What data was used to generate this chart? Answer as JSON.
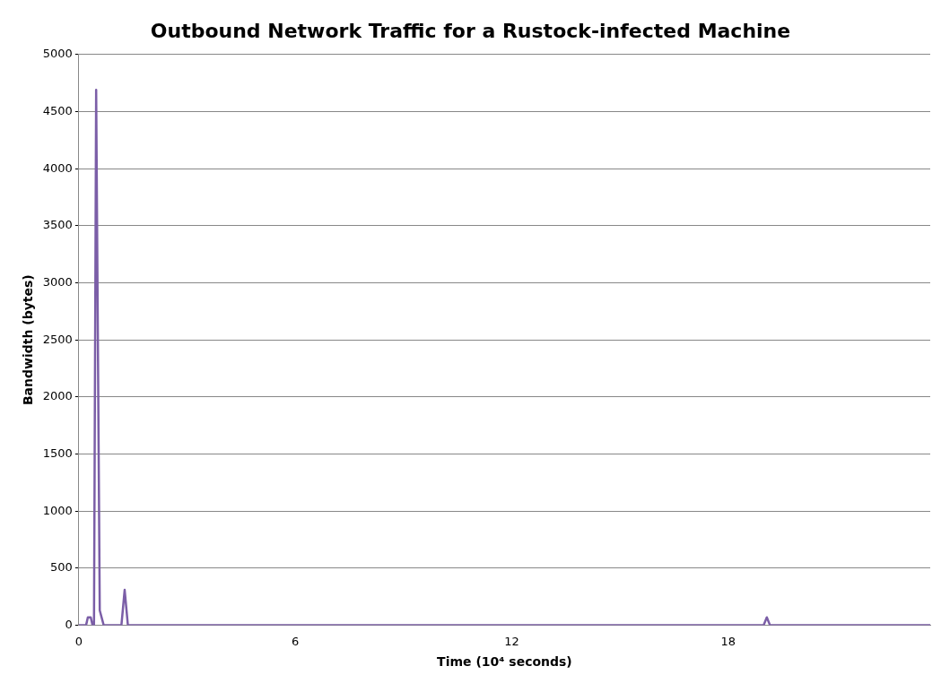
{
  "chart_data": {
    "type": "line",
    "title": "Outbound Network Traffic for a Rustock-infected Machine",
    "xlabel": "Time (10⁴ seconds)",
    "ylabel": "Bandwidth (bytes)",
    "x": [
      0,
      0.2,
      0.25,
      0.33,
      0.38,
      0.42,
      0.48,
      0.58,
      0.69,
      1.18,
      1.27,
      1.36,
      18.98,
      19.07,
      19.16,
      23.6
    ],
    "series": [
      {
        "color": "#7b5ea7",
        "values": [
          0,
          0,
          70,
          70,
          0,
          0,
          4690,
          130,
          0,
          0,
          310,
          0,
          0,
          70,
          0,
          0
        ]
      }
    ],
    "xlim": [
      0,
      23.6
    ],
    "xticks": [
      0,
      6,
      12,
      18
    ],
    "ylim": [
      0,
      5000
    ],
    "yticks": [
      0,
      500,
      1000,
      1500,
      2000,
      2500,
      3000,
      3500,
      4000,
      4500,
      5000
    ],
    "grid": "y",
    "legend": false,
    "marker": "none",
    "line_style": "solid"
  }
}
